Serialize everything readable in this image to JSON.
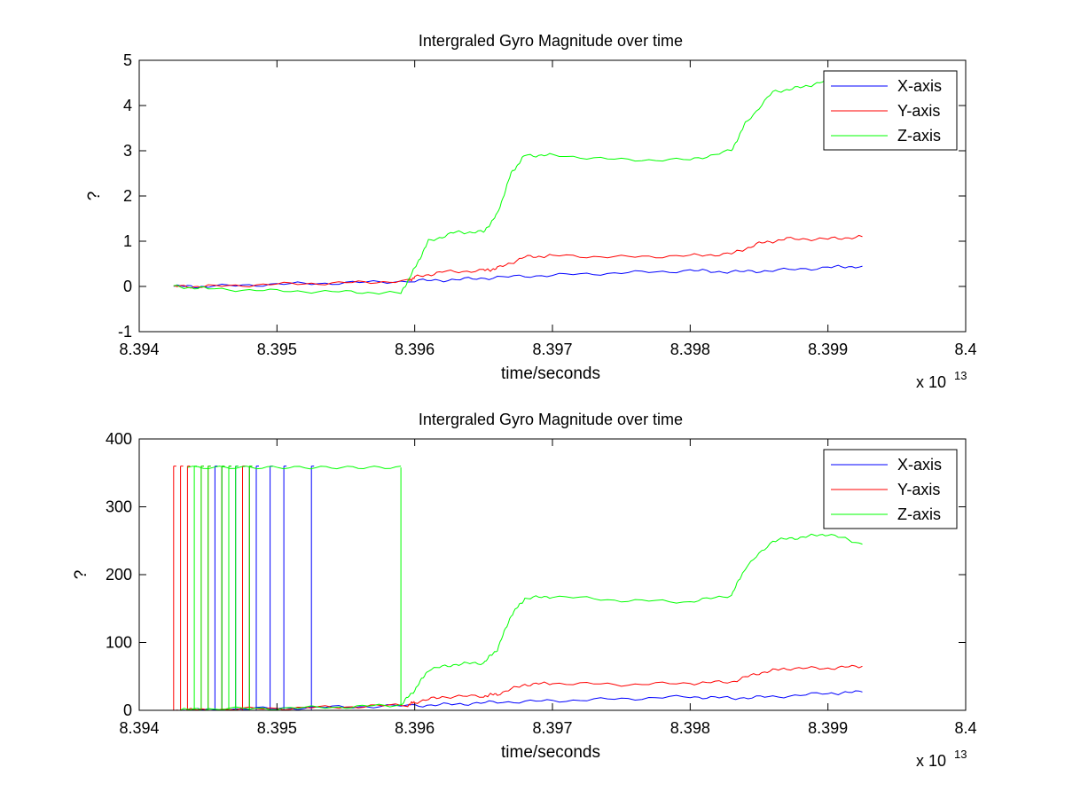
{
  "chart_data": [
    {
      "type": "line",
      "title": "Intergraled Gyro Magnitude over time",
      "xlabel": "time/seconds",
      "ylabel": "?",
      "x_exponent": "x 10",
      "x_exponent_power": "13",
      "xlim": [
        8.394,
        8.4
      ],
      "ylim": [
        -1,
        5
      ],
      "xticks": [
        8.394,
        8.395,
        8.396,
        8.397,
        8.398,
        8.399,
        8.4
      ],
      "xtick_labels": [
        "8.394",
        "8.395",
        "8.396",
        "8.397",
        "8.398",
        "8.399",
        "8.4"
      ],
      "yticks": [
        -1,
        0,
        1,
        2,
        3,
        4,
        5
      ],
      "ytick_labels": [
        "-1",
        "0",
        "1",
        "2",
        "3",
        "4",
        "5"
      ],
      "grid": false,
      "legend_position": "top-right",
      "series": [
        {
          "name": "X-axis",
          "color": "#0000ff",
          "x": [
            8.39425,
            8.3945,
            8.395,
            8.3955,
            8.396,
            8.3963,
            8.3966,
            8.397,
            8.3975,
            8.398,
            8.3983,
            8.3986,
            8.399,
            8.39925
          ],
          "y": [
            0.0,
            0.0,
            0.05,
            0.08,
            0.12,
            0.15,
            0.2,
            0.25,
            0.3,
            0.35,
            0.32,
            0.35,
            0.42,
            0.45
          ]
        },
        {
          "name": "Y-axis",
          "color": "#ff0000",
          "x": [
            8.39425,
            8.3945,
            8.395,
            8.3955,
            8.39595,
            8.396,
            8.3962,
            8.3965,
            8.3966,
            8.3968,
            8.397,
            8.3975,
            8.398,
            8.3983,
            8.3985,
            8.3987,
            8.399,
            8.39925
          ],
          "y": [
            0.0,
            0.0,
            0.05,
            0.08,
            0.12,
            0.2,
            0.32,
            0.35,
            0.4,
            0.65,
            0.68,
            0.65,
            0.68,
            0.72,
            0.95,
            1.05,
            1.05,
            1.1
          ]
        },
        {
          "name": "Z-axis",
          "color": "#00ff00",
          "x": [
            8.39425,
            8.3945,
            8.395,
            8.3955,
            8.3959,
            8.396,
            8.3961,
            8.3963,
            8.3965,
            8.3966,
            8.3967,
            8.3968,
            8.397,
            8.3975,
            8.398,
            8.3983,
            8.3984,
            8.3986,
            8.3988,
            8.399,
            8.39925
          ],
          "y": [
            0.0,
            -0.05,
            -0.1,
            -0.12,
            -0.15,
            0.4,
            1.0,
            1.2,
            1.2,
            1.6,
            2.5,
            2.9,
            2.9,
            2.8,
            2.8,
            3.0,
            3.6,
            4.3,
            4.4,
            4.55,
            4.55
          ]
        }
      ]
    },
    {
      "type": "line",
      "title": "Intergraled Gyro Magnitude over time",
      "xlabel": "time/seconds",
      "ylabel": "?",
      "x_exponent": "x 10",
      "x_exponent_power": "13",
      "xlim": [
        8.394,
        8.4
      ],
      "ylim": [
        0,
        400
      ],
      "xticks": [
        8.394,
        8.395,
        8.396,
        8.397,
        8.398,
        8.399,
        8.4
      ],
      "xtick_labels": [
        "8.394",
        "8.395",
        "8.396",
        "8.397",
        "8.398",
        "8.399",
        "8.4"
      ],
      "yticks": [
        0,
        100,
        200,
        300,
        400
      ],
      "ytick_labels": [
        "0",
        "100",
        "200",
        "300",
        "400"
      ],
      "grid": false,
      "legend_position": "top-right",
      "series": [
        {
          "name": "X-axis",
          "color": "#0000ff",
          "x": [
            8.39425,
            8.3945,
            8.395,
            8.3955,
            8.396,
            8.3963,
            8.3966,
            8.397,
            8.3975,
            8.398,
            8.3983,
            8.3986,
            8.399,
            8.39925
          ],
          "y": [
            0,
            1,
            3,
            5,
            7,
            9,
            12,
            14,
            17,
            20,
            18,
            20,
            25,
            27
          ],
          "spike_x": [
            8.39455,
            8.3946,
            8.39465,
            8.3947,
            8.39475,
            8.3948,
            8.39485,
            8.39495,
            8.39505,
            8.39525
          ]
        },
        {
          "name": "Y-axis",
          "color": "#ff0000",
          "x": [
            8.39425,
            8.3945,
            8.395,
            8.3955,
            8.39595,
            8.396,
            8.3962,
            8.3965,
            8.3966,
            8.3968,
            8.397,
            8.3975,
            8.398,
            8.3983,
            8.3985,
            8.3987,
            8.399,
            8.39925
          ],
          "y": [
            0,
            1,
            3,
            5,
            8,
            12,
            20,
            21,
            24,
            38,
            40,
            38,
            40,
            42,
            55,
            62,
            62,
            65
          ],
          "spike_x": [
            8.39425,
            8.3943,
            8.39435,
            8.39445,
            8.3945,
            8.3946,
            8.39465,
            8.39475,
            8.3948
          ]
        },
        {
          "name": "Z-axis",
          "color": "#00ff00",
          "x": [
            8.39425,
            8.3945,
            8.395,
            8.3955,
            8.3959,
            8.396,
            8.3961,
            8.3963,
            8.3965,
            8.3966,
            8.3967,
            8.3968,
            8.397,
            8.3975,
            8.398,
            8.3983,
            8.3984,
            8.3986,
            8.3988,
            8.399,
            8.39925
          ],
          "y": [
            0,
            2,
            3,
            5,
            8,
            30,
            60,
            68,
            70,
            90,
            140,
            165,
            168,
            162,
            160,
            170,
            210,
            250,
            255,
            260,
            245
          ],
          "spike_x": [
            8.3944,
            8.39445,
            8.3945,
            8.3946,
            8.39465,
            8.3947,
            8.3948
          ],
          "plateau": {
            "x_start": 8.39435,
            "x_end": 8.3959,
            "y": 358
          }
        }
      ]
    }
  ]
}
